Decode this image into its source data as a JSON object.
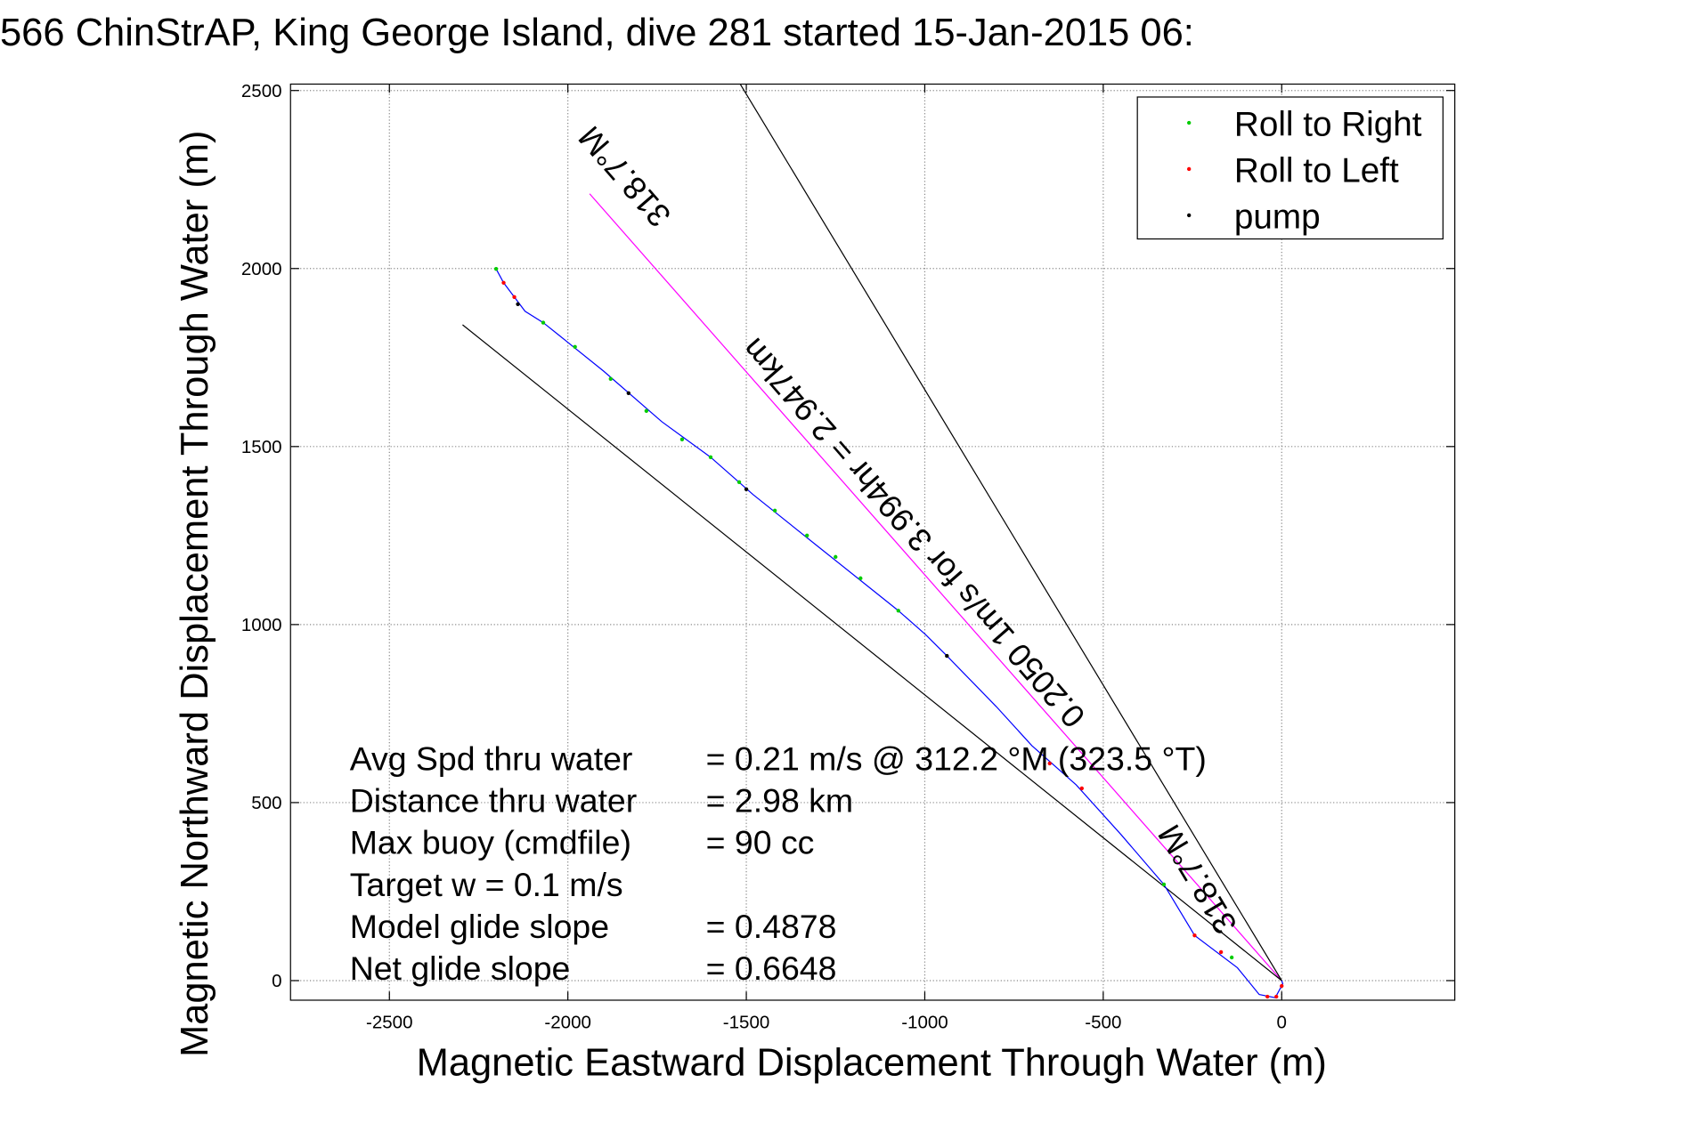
{
  "chart_data": {
    "type": "line",
    "title": "566 ChinStrAP, King George Island, dive 281 started 15-Jan-2015 06:",
    "xlabel": "Magnetic Eastward Displacement Through Water (m)",
    "ylabel": "Magnetic Northward Displacement Through Water (m)",
    "xlim": [
      -2777,
      485
    ],
    "ylim": [
      -55,
      2518
    ],
    "xticks": [
      -2500,
      -2000,
      -1500,
      -1000,
      -500,
      0
    ],
    "yticks": [
      0,
      500,
      1000,
      1500,
      2000,
      2500
    ],
    "grid": true,
    "legend_position": "top-right",
    "legend": [
      {
        "label": "Roll to Right",
        "color": "#00cc00"
      },
      {
        "label": "Roll to Left",
        "color": "#ff0000"
      },
      {
        "label": "pump",
        "color": "#000000"
      }
    ],
    "track": {
      "color": "#0000ff",
      "x": [
        -2201,
        -2180,
        -2150,
        -2120,
        -2069,
        -2024,
        -1900,
        -1737,
        -1600,
        -1481,
        -1300,
        -1150,
        -1074,
        -998,
        -938,
        -800,
        -700,
        -576,
        -450,
        -330,
        -244,
        -124,
        -63,
        -18,
        3,
        0
      ],
      "y": [
        1999,
        1960,
        1920,
        1880,
        1848,
        1812,
        1712,
        1570,
        1470,
        1365,
        1220,
        1100,
        1039,
        972,
        912,
        770,
        660,
        550,
        410,
        270,
        127,
        36,
        -39,
        -48,
        -9,
        0
      ]
    },
    "markers": {
      "roll_right": {
        "x": [
          -2201,
          -2069,
          -1980,
          -1880,
          -1780,
          -1680,
          -1600,
          -1520,
          -1420,
          -1330,
          -1250,
          -1180,
          -1074,
          -330,
          -140
        ],
        "y": [
          1999,
          1848,
          1780,
          1690,
          1600,
          1520,
          1470,
          1400,
          1320,
          1250,
          1190,
          1130,
          1039,
          270,
          65
        ]
      },
      "roll_left": {
        "x": [
          -2180,
          -2150,
          -650,
          -560,
          -244,
          -170,
          -40,
          -15,
          0
        ],
        "y": [
          1960,
          1920,
          610,
          540,
          127,
          80,
          -45,
          -45,
          -15
        ]
      },
      "pump": {
        "x": [
          -2140,
          -1830,
          -938,
          -1500
        ],
        "y": [
          1900,
          1650,
          912,
          1380
        ]
      }
    },
    "lines": [
      {
        "name": "heading-line",
        "color": "#ff00ff",
        "x": [
          0,
          -1939
        ],
        "y": [
          0,
          2210
        ]
      },
      {
        "name": "bound-line-1",
        "color": "#000000",
        "x": [
          0,
          -1517
        ],
        "y": [
          0,
          2518
        ]
      },
      {
        "name": "bound-line-2",
        "color": "#000000",
        "x": [
          0,
          -2295
        ],
        "y": [
          0,
          1842
        ]
      }
    ],
    "annotations": [
      {
        "text": "318.7°M",
        "x": -1520,
        "y": 1870,
        "angle": -131
      },
      {
        "text": "0.2050 1m/s for 3.994hr = 2.947km",
        "x": -320,
        "y": 180,
        "angle": -131
      },
      {
        "text": "318.7°M",
        "x": -180,
        "y": 270,
        "angle": -121
      }
    ],
    "summary": [
      {
        "label": "Avg Spd thru water",
        "value": "=  0.21 m/s @ 312.2 °M (323.5 °T)"
      },
      {
        "label": "Distance thru water",
        "value": "=  2.98 km"
      },
      {
        "label": "Max buoy (cmdfile)",
        "value": "= 90 cc"
      },
      {
        "label": "Target w    = 0.1 m/s",
        "value": ""
      },
      {
        "label": "Model glide slope",
        "value": "= 0.4878"
      },
      {
        "label": "Net glide slope",
        "value": "= 0.6648"
      }
    ]
  }
}
